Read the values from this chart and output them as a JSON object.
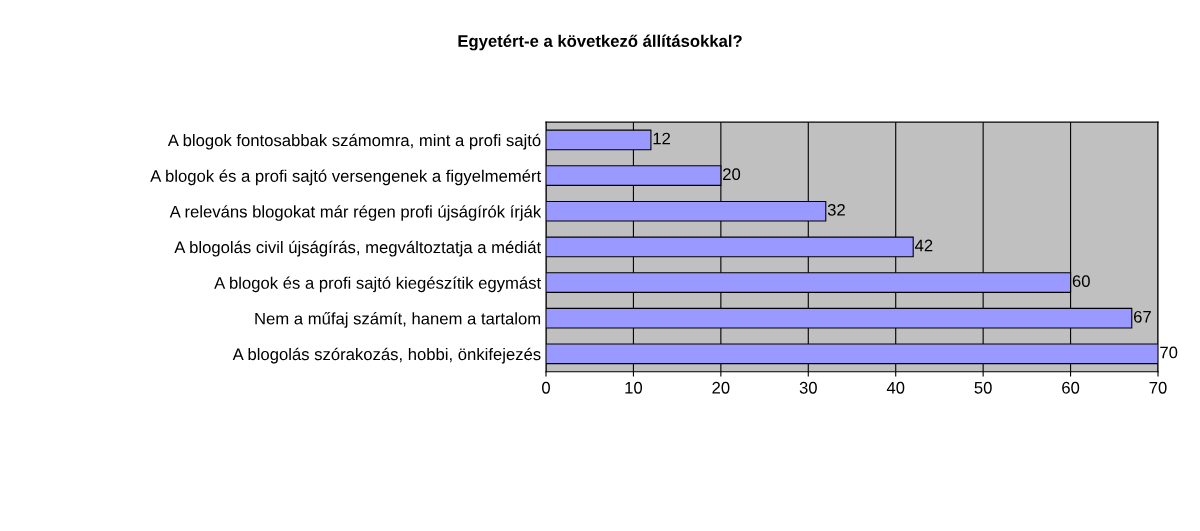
{
  "chart_data": {
    "type": "bar",
    "orientation": "horizontal",
    "title": "Egyetért-e a következő állításokkal?",
    "categories": [
      "A blogok fontosabbak számomra, mint a profi sajtó",
      "A blogok és a profi sajtó versengenek a figyelmemért",
      "A releváns blogokat már régen profi újságírók írják",
      "A blogolás civil újságírás, megváltoztatja a médiát",
      "A blogok és a profi sajtó kiegészítik egymást",
      "Nem a műfaj számít, hanem a tartalom",
      "A blogolás szórakozás, hobbi, önkifejezés"
    ],
    "values": [
      12,
      20,
      32,
      42,
      60,
      67,
      70
    ],
    "color": "#9999ff",
    "xlim": [
      0,
      70
    ],
    "xticks": [
      0,
      10,
      20,
      30,
      40,
      50,
      60,
      70
    ],
    "grid": "x",
    "data_labels": true
  }
}
